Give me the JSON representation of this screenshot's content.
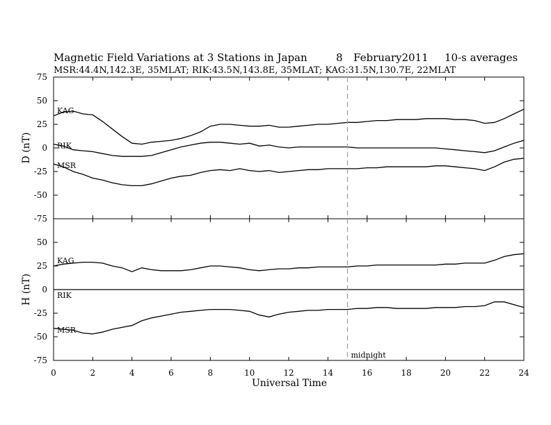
{
  "header": {
    "title": "Magnetic Field Variations at 3 Stations in Japan",
    "day": "8",
    "date": "February2011",
    "averaging": "10-s averages",
    "stations_info": "MSR:44.4N,142.3E, 35MLAT;  RIK:43.5N,143.8E, 35MLAT;  KAG:31.5N,130.7E, 22MLAT"
  },
  "chart_data": {
    "type": "line",
    "xlabel": "Universal Time",
    "x_ticks": [
      "0",
      "2",
      "4",
      "6",
      "8",
      "10",
      "12",
      "14",
      "16",
      "18",
      "20",
      "22",
      "24"
    ],
    "xlim": [
      0,
      24
    ],
    "midnight_marker": {
      "x": 15,
      "label": "midnight",
      "color": "#a0a0a0"
    },
    "panels": [
      {
        "ylabel": "D (nT)",
        "ylim": [
          -75,
          75
        ],
        "y_ticks": [
          "75",
          "50",
          "25",
          "0",
          "-25",
          "-50",
          "-75"
        ],
        "series": [
          {
            "name": "KAG",
            "x": [
              0,
              0.5,
              1,
              1.5,
              2,
              2.5,
              3,
              3.5,
              4,
              4.5,
              5,
              5.5,
              6,
              6.5,
              7,
              7.5,
              8,
              8.5,
              9,
              9.5,
              10,
              10.5,
              11,
              11.5,
              12,
              12.5,
              13,
              13.5,
              14,
              14.5,
              15,
              15.5,
              16,
              16.5,
              17,
              17.5,
              18,
              18.5,
              19,
              19.5,
              20,
              20.5,
              21,
              21.5,
              22,
              22.5,
              23,
              23.5,
              24
            ],
            "values": [
              34,
              38,
              39,
              36,
              35,
              28,
              20,
              12,
              5,
              4,
              6,
              7,
              8,
              10,
              13,
              17,
              23,
              25,
              25,
              24,
              23,
              23,
              24,
              22,
              22,
              23,
              24,
              25,
              25,
              26,
              27,
              27,
              28,
              29,
              29,
              30,
              30,
              30,
              31,
              31,
              31,
              30,
              30,
              29,
              26,
              27,
              31,
              36,
              41
            ]
          },
          {
            "name": "RIK",
            "x": [
              0,
              0.5,
              1,
              1.5,
              2,
              2.5,
              3,
              3.5,
              4,
              4.5,
              5,
              5.5,
              6,
              6.5,
              7,
              7.5,
              8,
              8.5,
              9,
              9.5,
              10,
              10.5,
              11,
              11.5,
              12,
              12.5,
              13,
              13.5,
              14,
              14.5,
              15,
              15.5,
              16,
              16.5,
              17,
              17.5,
              18,
              18.5,
              19,
              19.5,
              20,
              20.5,
              21,
              21.5,
              22,
              22.5,
              23,
              23.5,
              24
            ],
            "values": [
              4,
              2,
              -2,
              -3,
              -4,
              -6,
              -8,
              -9,
              -9,
              -9,
              -8,
              -5,
              -2,
              1,
              3,
              5,
              6,
              6,
              5,
              4,
              5,
              2,
              3,
              1,
              0,
              1,
              1,
              1,
              1,
              1,
              1,
              0,
              0,
              0,
              0,
              0,
              0,
              0,
              0,
              0,
              -1,
              -2,
              -3,
              -4,
              -5,
              -3,
              1,
              5,
              8
            ]
          },
          {
            "name": "MSR",
            "x": [
              0,
              0.5,
              1,
              1.5,
              2,
              2.5,
              3,
              3.5,
              4,
              4.5,
              5,
              5.5,
              6,
              6.5,
              7,
              7.5,
              8,
              8.5,
              9,
              9.5,
              10,
              10.5,
              11,
              11.5,
              12,
              12.5,
              13,
              13.5,
              14,
              14.5,
              15,
              15.5,
              16,
              16.5,
              17,
              17.5,
              18,
              18.5,
              19,
              19.5,
              20,
              20.5,
              21,
              21.5,
              22,
              22.5,
              23,
              23.5,
              24
            ],
            "values": [
              -17,
              -20,
              -25,
              -28,
              -32,
              -34,
              -37,
              -39,
              -40,
              -40,
              -38,
              -35,
              -32,
              -30,
              -29,
              -26,
              -24,
              -23,
              -24,
              -22,
              -24,
              -25,
              -24,
              -26,
              -25,
              -24,
              -23,
              -23,
              -22,
              -22,
              -22,
              -22,
              -21,
              -21,
              -20,
              -20,
              -20,
              -20,
              -20,
              -19,
              -19,
              -20,
              -21,
              -22,
              -24,
              -20,
              -15,
              -12,
              -11
            ]
          }
        ]
      },
      {
        "ylabel": "H (nT)",
        "ylim": [
          -75,
          75
        ],
        "y_ticks": [
          "75",
          "50",
          "25",
          "0",
          "-25",
          "-50",
          "-75"
        ],
        "series": [
          {
            "name": "KAG",
            "x": [
              0,
              0.5,
              1,
              1.5,
              2,
              2.5,
              3,
              3.5,
              4,
              4.5,
              5,
              5.5,
              6,
              6.5,
              7,
              7.5,
              8,
              8.5,
              9,
              9.5,
              10,
              10.5,
              11,
              11.5,
              12,
              12.5,
              13,
              13.5,
              14,
              14.5,
              15,
              15.5,
              16,
              16.5,
              17,
              17.5,
              18,
              18.5,
              19,
              19.5,
              20,
              20.5,
              21,
              21.5,
              22,
              22.5,
              23,
              23.5,
              24
            ],
            "values": [
              25,
              27,
              28,
              29,
              29,
              28,
              25,
              23,
              19,
              23,
              21,
              20,
              20,
              20,
              21,
              23,
              25,
              25,
              24,
              23,
              21,
              20,
              21,
              22,
              22,
              23,
              23,
              24,
              24,
              24,
              24,
              25,
              25,
              26,
              26,
              26,
              26,
              26,
              26,
              26,
              27,
              27,
              28,
              28,
              28,
              31,
              35,
              37,
              38
            ]
          },
          {
            "name": "RIK",
            "x": [
              0,
              24
            ],
            "values": [
              0,
              0
            ]
          },
          {
            "name": "MSR",
            "x": [
              0,
              0.5,
              1,
              1.5,
              2,
              2.5,
              3,
              3.5,
              4,
              4.5,
              5,
              5.5,
              6,
              6.5,
              7,
              7.5,
              8,
              8.5,
              9,
              9.5,
              10,
              10.5,
              11,
              11.5,
              12,
              12.5,
              13,
              13.5,
              14,
              14.5,
              15,
              15.5,
              16,
              16.5,
              17,
              17.5,
              18,
              18.5,
              19,
              19.5,
              20,
              20.5,
              21,
              21.5,
              22,
              22.5,
              23,
              23.5,
              24
            ],
            "values": [
              -41,
              -42,
              -43,
              -46,
              -47,
              -45,
              -42,
              -40,
              -38,
              -33,
              -30,
              -28,
              -26,
              -24,
              -23,
              -22,
              -21,
              -21,
              -21,
              -22,
              -23,
              -27,
              -29,
              -26,
              -24,
              -23,
              -22,
              -22,
              -21,
              -21,
              -21,
              -20,
              -20,
              -19,
              -19,
              -20,
              -20,
              -20,
              -20,
              -19,
              -19,
              -19,
              -18,
              -18,
              -17,
              -13,
              -13,
              -16,
              -19
            ]
          }
        ]
      }
    ]
  }
}
